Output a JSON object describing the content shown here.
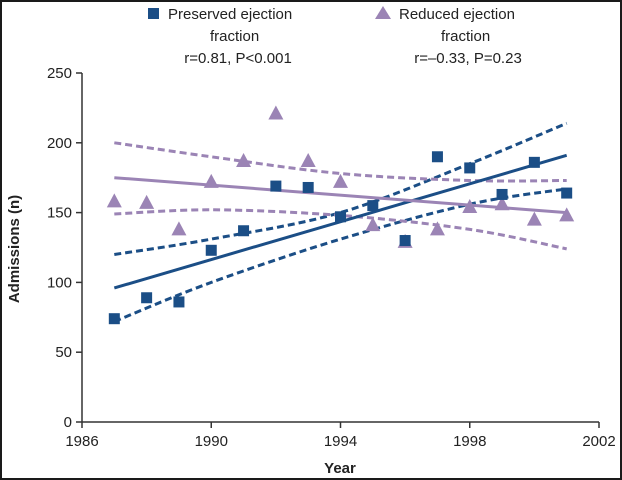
{
  "chart_data": {
    "type": "scatter",
    "title": "",
    "xlabel": "Year",
    "ylabel": "Admissions (n)",
    "xlim": [
      1986,
      2002
    ],
    "ylim": [
      0,
      250
    ],
    "xticks": [
      1986,
      1990,
      1994,
      1998,
      2002
    ],
    "yticks": [
      0,
      50,
      100,
      150,
      200,
      250
    ],
    "grid": false,
    "legend_position": "top",
    "series": [
      {
        "name": "Preserved ejection fraction",
        "stat": "r=0.81, P<0.001",
        "marker": "square",
        "color": "#1b4e86",
        "points": [
          {
            "x": 1987,
            "y": 74
          },
          {
            "x": 1988,
            "y": 89
          },
          {
            "x": 1989,
            "y": 86
          },
          {
            "x": 1990,
            "y": 123
          },
          {
            "x": 1991,
            "y": 137
          },
          {
            "x": 1992,
            "y": 169
          },
          {
            "x": 1993,
            "y": 168
          },
          {
            "x": 1994,
            "y": 147
          },
          {
            "x": 1995,
            "y": 155
          },
          {
            "x": 1996,
            "y": 130
          },
          {
            "x": 1997,
            "y": 190
          },
          {
            "x": 1998,
            "y": 182
          },
          {
            "x": 1999,
            "y": 163
          },
          {
            "x": 2000,
            "y": 186
          },
          {
            "x": 2001,
            "y": 164
          }
        ],
        "fit": [
          {
            "x": 1987,
            "y": 96
          },
          {
            "x": 2001,
            "y": 191
          }
        ],
        "ci_upper": [
          {
            "x": 1987,
            "y": 120
          },
          {
            "x": 1990,
            "y": 131
          },
          {
            "x": 1994,
            "y": 150
          },
          {
            "x": 1998,
            "y": 185
          },
          {
            "x": 2001,
            "y": 214
          }
        ],
        "ci_lower": [
          {
            "x": 1987,
            "y": 72
          },
          {
            "x": 1990,
            "y": 100
          },
          {
            "x": 1994,
            "y": 131
          },
          {
            "x": 1998,
            "y": 156
          },
          {
            "x": 2001,
            "y": 167
          }
        ]
      },
      {
        "name": "Reduced ejection fraction",
        "stat": "r=–0.33, P=0.23",
        "marker": "triangle",
        "color": "#9b84b5",
        "points": [
          {
            "x": 1987,
            "y": 158
          },
          {
            "x": 1988,
            "y": 157
          },
          {
            "x": 1989,
            "y": 138
          },
          {
            "x": 1990,
            "y": 172
          },
          {
            "x": 1991,
            "y": 187
          },
          {
            "x": 1992,
            "y": 221
          },
          {
            "x": 1993,
            "y": 187
          },
          {
            "x": 1994,
            "y": 172
          },
          {
            "x": 1995,
            "y": 141
          },
          {
            "x": 1996,
            "y": 129
          },
          {
            "x": 1997,
            "y": 138
          },
          {
            "x": 1998,
            "y": 154
          },
          {
            "x": 1999,
            "y": 156
          },
          {
            "x": 2000,
            "y": 145
          },
          {
            "x": 2001,
            "y": 148
          }
        ],
        "fit": [
          {
            "x": 1987,
            "y": 175
          },
          {
            "x": 2001,
            "y": 150
          }
        ],
        "ci_upper": [
          {
            "x": 1987,
            "y": 200
          },
          {
            "x": 1990,
            "y": 190
          },
          {
            "x": 1994,
            "y": 178
          },
          {
            "x": 1998,
            "y": 173
          },
          {
            "x": 2001,
            "y": 173
          }
        ],
        "ci_lower": [
          {
            "x": 1987,
            "y": 149
          },
          {
            "x": 1990,
            "y": 152
          },
          {
            "x": 1994,
            "y": 148
          },
          {
            "x": 1998,
            "y": 138
          },
          {
            "x": 2001,
            "y": 124
          }
        ]
      }
    ]
  }
}
